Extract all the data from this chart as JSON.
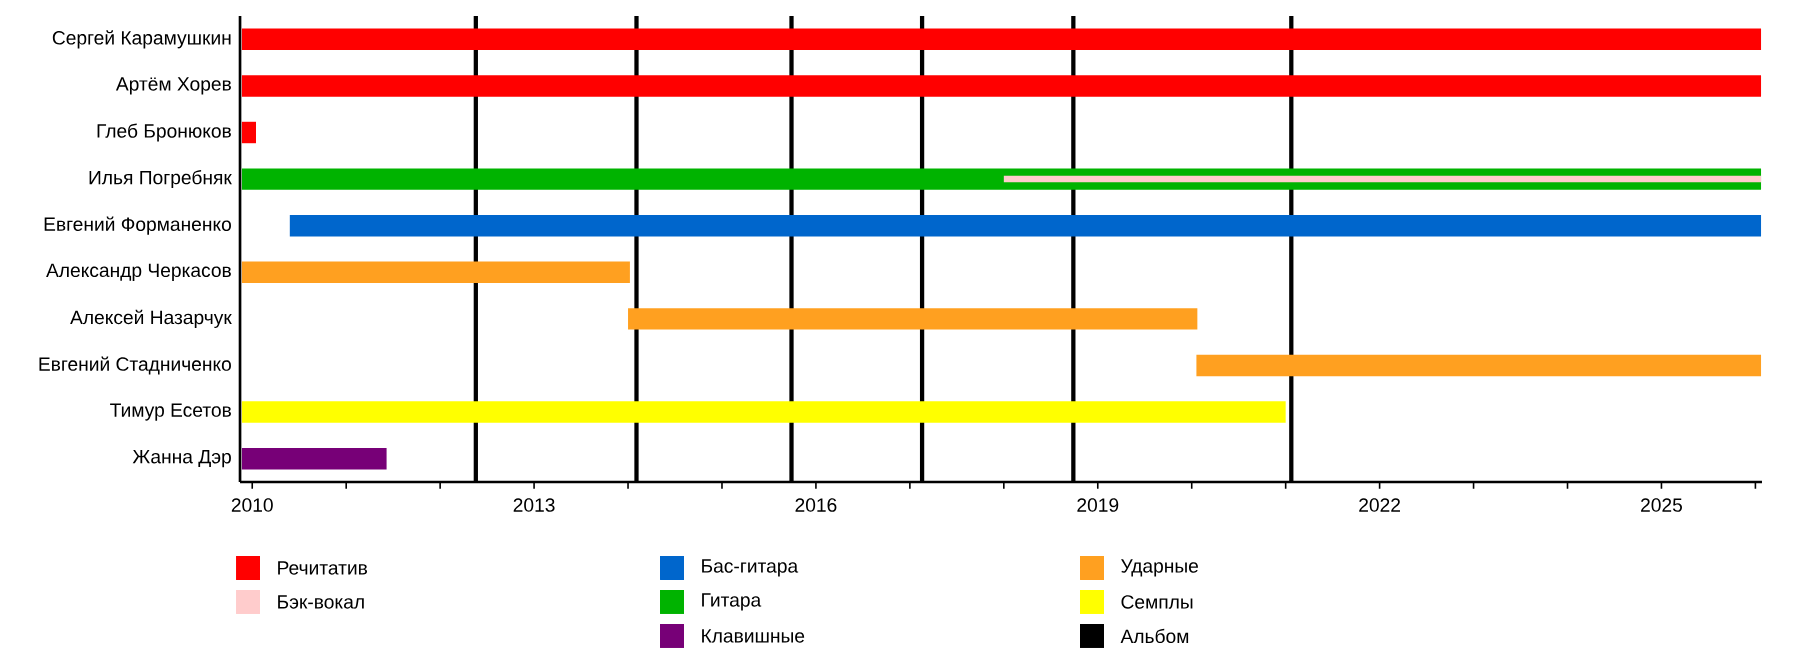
{
  "chart_data": {
    "type": "bar",
    "orientation": "horizontal",
    "legend": "bottom",
    "categories": [
      "Сергей Карамушкин",
      "Артём Хорев",
      "Глеб Бронюков",
      "Илья Погребняк",
      "Евгений Форманенко",
      "Александр Черкасов",
      "Алексей Назарчук",
      "Евгений Стадниченко",
      "Тимур Есетов",
      "Жанна Дэр"
    ],
    "series": [
      {
        "name": "Речитатив",
        "color": "#ff0000",
        "base": [
          2009.89,
          2009.89,
          2009.89,
          null,
          null,
          null,
          null,
          null,
          null,
          null
        ],
        "values": [
          16.17,
          16.17,
          0.15,
          null,
          null,
          null,
          null,
          null,
          null,
          null
        ]
      },
      {
        "name": "Бэк-вокал",
        "color": "#ffcccc",
        "base": [
          null,
          null,
          null,
          2018.0,
          null,
          null,
          null,
          null,
          null,
          null
        ],
        "values": [
          null,
          null,
          null,
          8.06,
          null,
          null,
          null,
          null,
          null,
          null
        ]
      },
      {
        "name": "Бас-гитара",
        "color": "#0066cc",
        "base": [
          null,
          null,
          null,
          null,
          2010.4,
          null,
          null,
          null,
          null,
          null
        ],
        "values": [
          null,
          null,
          null,
          null,
          15.66,
          null,
          null,
          null,
          null,
          null
        ]
      },
      {
        "name": "Гитара",
        "color": "#00b300",
        "base": [
          null,
          null,
          null,
          2009.89,
          null,
          null,
          null,
          null,
          null,
          null
        ],
        "values": [
          null,
          null,
          null,
          16.17,
          null,
          null,
          null,
          null,
          null,
          null
        ]
      },
      {
        "name": "Клавишные",
        "color": "#770077",
        "base": [
          null,
          null,
          null,
          null,
          null,
          null,
          null,
          null,
          null,
          2009.89
        ],
        "values": [
          null,
          null,
          null,
          null,
          null,
          null,
          null,
          null,
          null,
          1.54
        ]
      },
      {
        "name": "Ударные",
        "color": "#ffa020",
        "base": [
          null,
          null,
          null,
          null,
          null,
          2009.89,
          2014.0,
          2020.05,
          null,
          null
        ],
        "values": [
          null,
          null,
          null,
          null,
          null,
          4.13,
          6.06,
          6.01,
          null,
          null
        ]
      },
      {
        "name": "Семплы",
        "color": "#ffff00",
        "base": [
          null,
          null,
          null,
          null,
          null,
          null,
          null,
          null,
          2009.89,
          null
        ],
        "values": [
          null,
          null,
          null,
          null,
          null,
          null,
          null,
          null,
          11.11,
          null
        ]
      }
    ],
    "ref_lines": [
      {
        "axis": "x",
        "value": 2012.38,
        "color": "#000000",
        "label": "Альбом"
      },
      {
        "axis": "x",
        "value": 2014.09,
        "color": "#000000"
      },
      {
        "axis": "x",
        "value": 2015.74,
        "color": "#000000"
      },
      {
        "axis": "x",
        "value": 2017.13,
        "color": "#000000"
      },
      {
        "axis": "x",
        "value": 2018.74,
        "color": "#000000"
      },
      {
        "axis": "x",
        "value": 2021.06,
        "color": "#000000"
      }
    ],
    "xlim": [
      2009.87,
      2026.07
    ],
    "xticks": [
      2010,
      {
        "value": 2011,
        "label": null
      },
      {
        "value": 2012,
        "label": null
      },
      2013,
      {
        "value": 2014,
        "label": null
      },
      {
        "value": 2015,
        "label": null
      },
      2016,
      {
        "value": 2017,
        "label": null
      },
      {
        "value": 2018,
        "label": null
      },
      2019,
      {
        "value": 2020,
        "label": null
      },
      {
        "value": 2021,
        "label": null
      },
      2022,
      {
        "value": 2023,
        "label": null
      },
      {
        "value": 2024,
        "label": null
      },
      2025,
      {
        "value": 2026,
        "label": null
      }
    ]
  }
}
